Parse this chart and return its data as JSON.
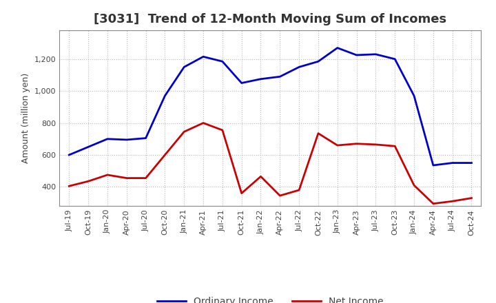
{
  "title": "[3031]  Trend of 12-Month Moving Sum of Incomes",
  "ylabel": "Amount (million yen)",
  "x_labels": [
    "Jul-19",
    "Oct-19",
    "Jan-20",
    "Apr-20",
    "Jul-20",
    "Oct-20",
    "Jan-21",
    "Apr-21",
    "Jul-21",
    "Oct-21",
    "Jan-22",
    "Apr-22",
    "Jul-22",
    "Oct-22",
    "Jan-23",
    "Apr-23",
    "Jul-23",
    "Oct-23",
    "Jan-24",
    "Apr-24",
    "Jul-24",
    "Oct-24"
  ],
  "ordinary_income": [
    600,
    650,
    700,
    695,
    705,
    970,
    1150,
    1215,
    1185,
    1050,
    1075,
    1090,
    1150,
    1185,
    1270,
    1225,
    1230,
    1200,
    970,
    535,
    550,
    550
  ],
  "net_income": [
    405,
    435,
    475,
    455,
    455,
    600,
    745,
    800,
    755,
    360,
    465,
    345,
    380,
    735,
    660,
    670,
    665,
    655,
    410,
    295,
    310,
    330
  ],
  "ordinary_color": "#0000cc",
  "net_color": "#cc0000",
  "line_width": 2.0,
  "ylim_min": 280,
  "ylim_max": 1380,
  "yticks": [
    400,
    600,
    800,
    1000,
    1200
  ],
  "ytick_labels": [
    "400",
    "600",
    "800",
    "1,000",
    "1,200"
  ],
  "background_color": "#ffffff",
  "grid_color": "#999999",
  "title_fontsize": 13,
  "axis_label_fontsize": 9,
  "tick_fontsize": 8,
  "legend_entries": [
    "Ordinary Income",
    "Net Income"
  ],
  "legend_fontsize": 10
}
